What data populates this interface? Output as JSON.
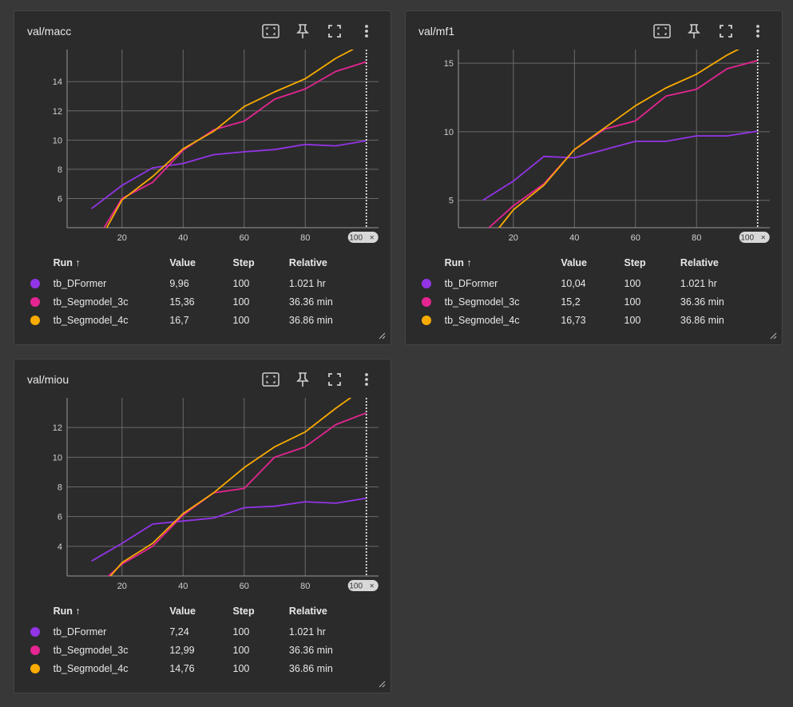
{
  "legend_header": {
    "run": "Run ↑",
    "value": "Value",
    "step": "Step",
    "relative": "Relative"
  },
  "step_badge": "100",
  "colors": {
    "tb_DFormer": "#9334e6",
    "tb_Segmodel_3c": "#e52592",
    "tb_Segmodel_4c": "#f9ab00"
  },
  "icons": [
    "fit-domain-icon",
    "pin-icon",
    "fullscreen-icon",
    "more-vert-icon"
  ],
  "cards": [
    {
      "title": "val/macc",
      "rows": [
        {
          "run": "tb_DFormer",
          "value": "9,96",
          "step": "100",
          "relative": "1.021 hr"
        },
        {
          "run": "tb_Segmodel_3c",
          "value": "15,36",
          "step": "100",
          "relative": "36.36 min"
        },
        {
          "run": "tb_Segmodel_4c",
          "value": "16,7",
          "step": "100",
          "relative": "36.86 min"
        }
      ]
    },
    {
      "title": "val/mf1",
      "rows": [
        {
          "run": "tb_DFormer",
          "value": "10,04",
          "step": "100",
          "relative": "1.021 hr"
        },
        {
          "run": "tb_Segmodel_3c",
          "value": "15,2",
          "step": "100",
          "relative": "36.36 min"
        },
        {
          "run": "tb_Segmodel_4c",
          "value": "16,73",
          "step": "100",
          "relative": "36.86 min"
        }
      ]
    },
    {
      "title": "val/miou",
      "rows": [
        {
          "run": "tb_DFormer",
          "value": "7,24",
          "step": "100",
          "relative": "1.021 hr"
        },
        {
          "run": "tb_Segmodel_3c",
          "value": "12,99",
          "step": "100",
          "relative": "36.36 min"
        },
        {
          "run": "tb_Segmodel_4c",
          "value": "14,76",
          "step": "100",
          "relative": "36.86 min"
        }
      ]
    }
  ],
  "chart_data": [
    {
      "type": "line",
      "title": "val/macc",
      "xlim": [
        2,
        104
      ],
      "ylim": [
        4,
        16.2
      ],
      "xticks": [
        20,
        40,
        60,
        80
      ],
      "yticks": [
        6,
        8,
        10,
        12,
        14
      ],
      "series": [
        {
          "name": "tb_DFormer",
          "x": [
            10,
            20,
            30,
            40,
            50,
            60,
            70,
            80,
            90,
            100
          ],
          "values": [
            5.3,
            6.9,
            8.1,
            8.4,
            9.0,
            9.2,
            9.35,
            9.7,
            9.6,
            9.96
          ]
        },
        {
          "name": "tb_Segmodel_3c",
          "x": [
            10,
            20,
            30,
            40,
            50,
            60,
            70,
            80,
            90,
            100
          ],
          "values": [
            2.6,
            6.0,
            7.1,
            9.3,
            10.7,
            11.3,
            12.8,
            13.5,
            14.7,
            15.36
          ]
        },
        {
          "name": "tb_Segmodel_4c",
          "x": [
            10,
            20,
            30,
            40,
            50,
            60,
            70,
            80,
            90,
            100
          ],
          "values": [
            2.1,
            5.9,
            7.5,
            9.4,
            10.6,
            12.3,
            13.3,
            14.2,
            15.6,
            16.7
          ]
        }
      ]
    },
    {
      "type": "line",
      "title": "val/mf1",
      "xlim": [
        2,
        104
      ],
      "ylim": [
        3,
        16
      ],
      "xticks": [
        20,
        40,
        60,
        80
      ],
      "yticks": [
        5,
        10,
        15
      ],
      "series": [
        {
          "name": "tb_DFormer",
          "x": [
            10,
            20,
            30,
            40,
            50,
            60,
            70,
            80,
            90,
            100
          ],
          "values": [
            5.0,
            6.4,
            8.2,
            8.1,
            8.7,
            9.3,
            9.3,
            9.7,
            9.7,
            10.04
          ]
        },
        {
          "name": "tb_Segmodel_3c",
          "x": [
            10,
            20,
            30,
            40,
            50,
            60,
            70,
            80,
            90,
            100
          ],
          "values": [
            2.6,
            4.6,
            6.2,
            8.7,
            10.2,
            10.8,
            12.6,
            13.1,
            14.6,
            15.2
          ]
        },
        {
          "name": "tb_Segmodel_4c",
          "x": [
            10,
            20,
            30,
            40,
            50,
            60,
            70,
            80,
            90,
            100
          ],
          "values": [
            1.5,
            4.3,
            6.1,
            8.7,
            10.3,
            11.9,
            13.2,
            14.2,
            15.6,
            16.73
          ]
        }
      ]
    },
    {
      "type": "line",
      "title": "val/miou",
      "xlim": [
        2,
        104
      ],
      "ylim": [
        2,
        14
      ],
      "xticks": [
        20,
        40,
        60,
        80
      ],
      "yticks": [
        4,
        6,
        8,
        10,
        12
      ],
      "series": [
        {
          "name": "tb_DFormer",
          "x": [
            10,
            20,
            30,
            40,
            50,
            60,
            70,
            80,
            90,
            100
          ],
          "values": [
            3.0,
            4.2,
            5.5,
            5.7,
            5.9,
            6.6,
            6.7,
            7.0,
            6.9,
            7.24
          ]
        },
        {
          "name": "tb_Segmodel_3c",
          "x": [
            10,
            20,
            30,
            40,
            50,
            60,
            70,
            80,
            90,
            100
          ],
          "values": [
            1.0,
            2.8,
            4.0,
            6.1,
            7.6,
            7.9,
            10.0,
            10.7,
            12.2,
            12.99
          ]
        },
        {
          "name": "tb_Segmodel_4c",
          "x": [
            10,
            20,
            30,
            40,
            50,
            60,
            70,
            80,
            90,
            100
          ],
          "values": [
            0.5,
            2.9,
            4.2,
            6.2,
            7.6,
            9.3,
            10.7,
            11.7,
            13.3,
            14.76
          ]
        }
      ]
    }
  ]
}
